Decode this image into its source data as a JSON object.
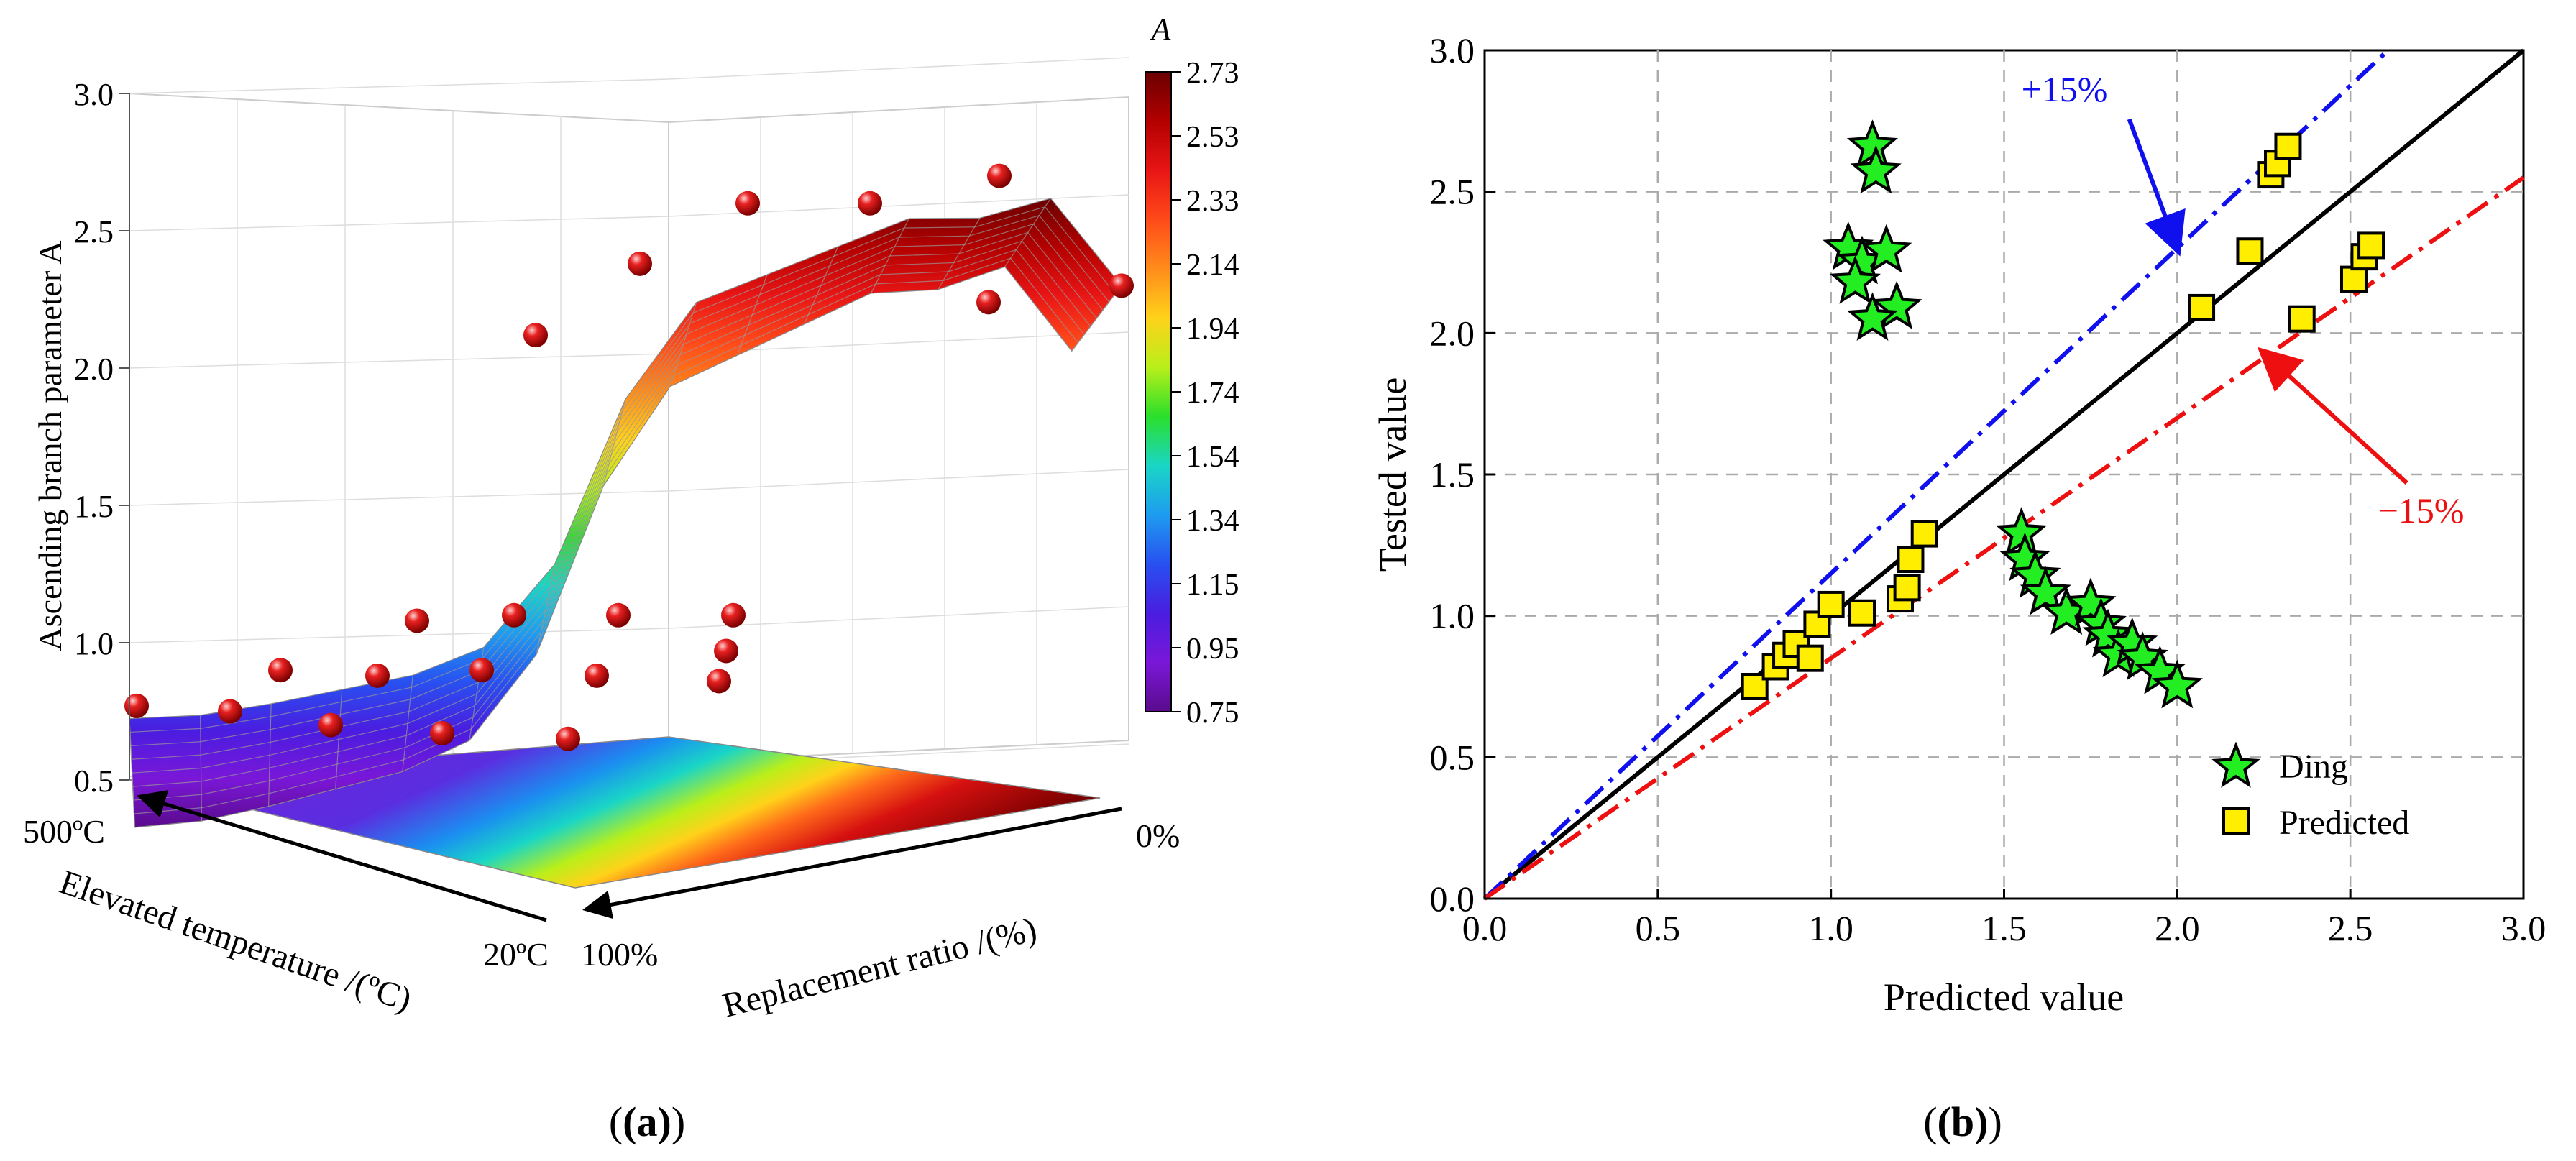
{
  "chart_data": [
    {
      "type": "surface3d",
      "panel_label": "(a)",
      "zlabel": "Ascending branch parameter A",
      "xlabel": "Elevated temperature /(ºC)",
      "ylabel": "Replacement ratio /(%)",
      "z_ticks": [
        "0.5",
        "1.0",
        "1.5",
        "2.0",
        "2.5",
        "3.0"
      ],
      "zlim": [
        0.5,
        3.0
      ],
      "x_tick_labels": [
        "500ºC",
        "20ºC"
      ],
      "y_tick_labels": [
        "0%",
        "100%"
      ],
      "colorbar": {
        "title": "A",
        "ticks": [
          "2.73",
          "2.53",
          "2.33",
          "2.14",
          "1.94",
          "1.74",
          "1.54",
          "1.34",
          "1.15",
          "0.95",
          "0.75"
        ],
        "colors": [
          "#6a0000",
          "#b30000",
          "#e81515",
          "#ff4a1a",
          "#ff8c1a",
          "#ffd21a",
          "#b9ef1a",
          "#2adf2a",
          "#1ad6c6",
          "#1e9cf0",
          "#2850f0",
          "#4a1de0",
          "#7a17d8",
          "#5a0b8c"
        ]
      },
      "surface_front_profile_z": [
        0.75,
        0.76,
        0.8,
        0.85,
        0.9,
        1.0,
        1.3,
        1.9,
        2.25,
        2.35,
        2.45,
        2.55,
        2.55,
        2.62,
        2.3
      ],
      "points": {
        "front": [
          0.77,
          0.75,
          0.7,
          0.67,
          0.65,
          0.86
        ],
        "mid": [
          0.9,
          0.88,
          0.9,
          0.88,
          0.97
        ],
        "back": [
          1.08,
          1.1,
          1.1,
          1.1
        ],
        "upper": [
          2.12,
          2.38,
          2.6,
          2.6,
          2.7,
          2.24,
          2.3
        ]
      }
    },
    {
      "type": "scatter",
      "panel_label": "(b)",
      "xlabel": "Predicted value",
      "ylabel": "Tested value",
      "xlim": [
        0.0,
        3.0
      ],
      "ylim": [
        0.0,
        3.0
      ],
      "x_ticks": [
        0.0,
        0.5,
        1.0,
        1.5,
        2.0,
        2.5,
        3.0
      ],
      "y_ticks": [
        0.0,
        0.5,
        1.0,
        1.5,
        2.0,
        2.5,
        3.0
      ],
      "tick_labels": [
        "0.0",
        "0.5",
        "1.0",
        "1.5",
        "2.0",
        "2.5",
        "3.0"
      ],
      "grid": true,
      "lines": [
        {
          "name": "y = x",
          "slope": 1.0,
          "color": "#000000",
          "style": "solid"
        },
        {
          "name": "+15%",
          "slope": 1.15,
          "color": "#1010ee",
          "style": "dashdot"
        },
        {
          "name": "−15%",
          "slope": 0.85,
          "color": "#ee1010",
          "style": "dashdot"
        }
      ],
      "annotations": [
        {
          "text": "+15%",
          "color": "#1010ee",
          "text_at": [
            1.55,
            2.82
          ],
          "arrow_to": [
            2.0,
            2.3
          ]
        },
        {
          "text": "−15%",
          "color": "#ee1010",
          "text_at": [
            2.58,
            1.33
          ],
          "arrow_to": [
            2.25,
            1.93
          ]
        }
      ],
      "legend_position": "lower-right",
      "series": [
        {
          "name": "Ding",
          "marker": "star",
          "color": "#22ee22",
          "x": [
            1.12,
            1.13,
            1.05,
            1.09,
            1.07,
            1.16,
            1.19,
            1.12,
            1.55,
            1.56,
            1.59,
            1.62,
            1.68,
            1.75,
            1.78,
            1.8,
            1.83,
            1.87,
            1.9,
            1.95,
            2.0
          ],
          "y": [
            2.66,
            2.57,
            2.3,
            2.25,
            2.18,
            2.29,
            2.09,
            2.05,
            1.29,
            1.2,
            1.14,
            1.08,
            1.01,
            1.04,
            0.97,
            0.93,
            0.86,
            0.9,
            0.85,
            0.8,
            0.75
          ]
        },
        {
          "name": "Predicted",
          "marker": "square",
          "color": "#ffee00",
          "x": [
            0.78,
            0.84,
            0.87,
            0.9,
            0.94,
            0.96,
            1.0,
            1.09,
            1.2,
            1.22,
            1.23,
            1.27,
            2.07,
            2.21,
            2.27,
            2.29,
            2.32,
            2.36,
            2.51,
            2.54,
            2.56
          ],
          "y": [
            0.75,
            0.82,
            0.86,
            0.9,
            0.85,
            0.97,
            1.04,
            1.01,
            1.06,
            1.1,
            1.2,
            1.29,
            2.09,
            2.29,
            2.56,
            2.6,
            2.66,
            2.05,
            2.19,
            2.27,
            2.31
          ]
        }
      ]
    }
  ]
}
